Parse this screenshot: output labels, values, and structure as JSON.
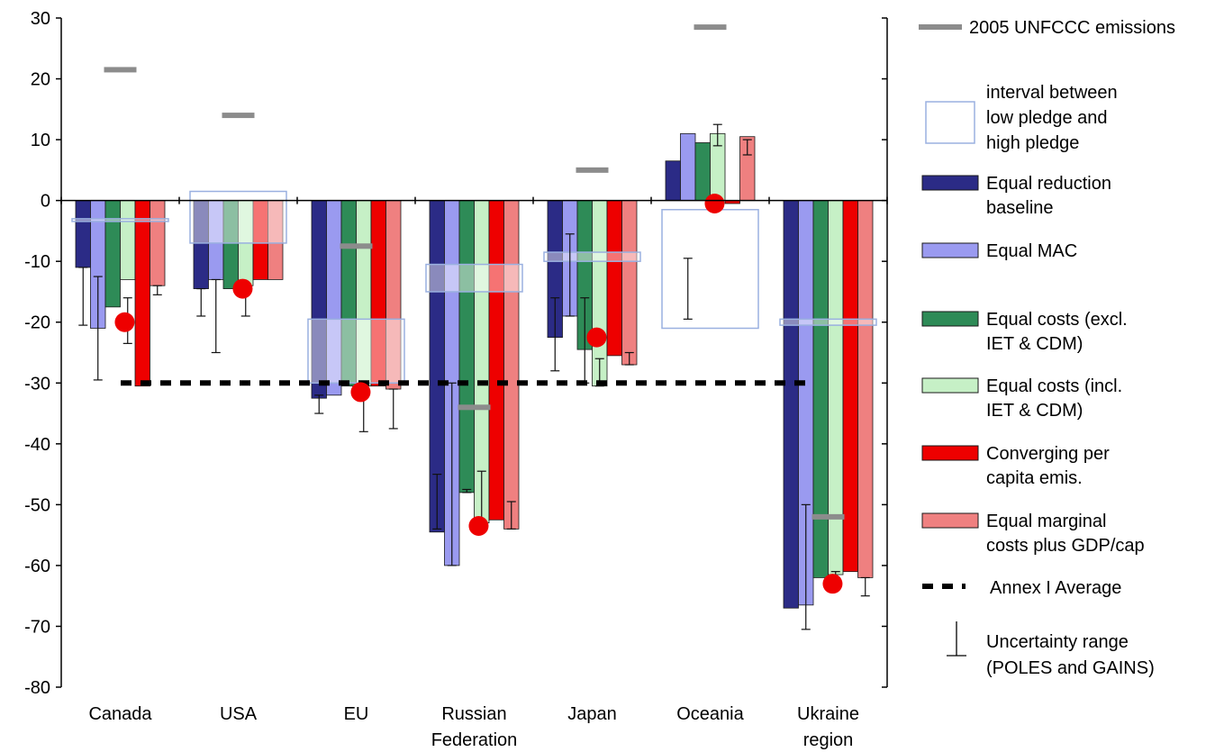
{
  "chart_data": {
    "type": "bar",
    "ylim": [
      -80,
      30
    ],
    "yticks": [
      "30",
      "20",
      "10",
      "0",
      "-10",
      "-20",
      "-30",
      "-40",
      "-50",
      "-60",
      "-70",
      "-80"
    ],
    "categories": [
      [
        "Canada"
      ],
      [
        "USA"
      ],
      [
        "EU"
      ],
      [
        "Russian",
        "Federation"
      ],
      [
        "Japan"
      ],
      [
        "Oceania"
      ],
      [
        "Ukraine",
        "region"
      ]
    ],
    "colors": {
      "equal_reduction_baseline": "#2b2b86",
      "equal_mac": "#9a9af0",
      "equal_costs_excl": "#2e8b57",
      "equal_costs_incl": "#c6f0c6",
      "converging": "#ee0000",
      "equal_marginal_gdp": "#ef8080",
      "unfccc_marker": "#8c8c8c",
      "pledge_box": "#9ab0e0",
      "red_dot": "#ee0000"
    },
    "series": [
      {
        "name": "Equal reduction baseline",
        "key": "equal_reduction_baseline",
        "values": [
          -11,
          -14.5,
          -32.5,
          -54.5,
          -22.5,
          6.5,
          -67
        ]
      },
      {
        "name": "Equal MAC",
        "key": "equal_mac",
        "values": [
          -21,
          -13,
          -32,
          -60,
          -19,
          11,
          -66.5
        ]
      },
      {
        "name": "Equal costs (excl. IET & CDM)",
        "key": "equal_costs_excl",
        "values": [
          -17.5,
          -14.5,
          -30.5,
          -48,
          -24.5,
          9.5,
          -62
        ]
      },
      {
        "name": "Equal costs (incl. IET & CDM)",
        "key": "equal_costs_incl",
        "values": [
          -13,
          -14,
          -30.5,
          -53,
          -30.5,
          11,
          -61.5
        ]
      },
      {
        "name": "Converging per capita emis.",
        "key": "converging",
        "values": [
          -30.5,
          -13,
          -30.5,
          -52.5,
          -25.5,
          -0.5,
          -61
        ]
      },
      {
        "name": "Equal marginal costs plus GDP/cap",
        "key": "equal_marginal_gdp",
        "values": [
          -14,
          -13,
          -31,
          -54,
          -27,
          10.5,
          -62
        ]
      }
    ],
    "unfccc_2005": [
      21.5,
      14,
      -7.5,
      -34,
      5,
      28.5,
      -52
    ],
    "pledge_interval": [
      [
        -1.5,
        -3
      ],
      [
        -7,
        1.5
      ],
      [
        -30,
        -19.5
      ],
      [
        -15,
        -10.5
      ],
      [
        -10,
        -8.5
      ],
      [
        -21,
        -1.5
      ],
      [
        -20.5,
        -19.5
      ]
    ],
    "pledge_markers": [
      -20,
      -14.5,
      -31.5,
      -53.5,
      -22.5,
      -0.5,
      -63
    ],
    "annex1_average": -30,
    "uncertainty": [
      [
        -20.5,
        -11
      ],
      [
        -29.5,
        -12.5
      ],
      null,
      [
        -23.5,
        -16
      ],
      null,
      [
        -15.5,
        -14
      ],
      [
        -19,
        -14.5
      ],
      [
        -25,
        -13
      ],
      null,
      [
        -19,
        -14.5
      ],
      null,
      null,
      [
        -35,
        -32
      ],
      null,
      null,
      [
        -38,
        -31
      ],
      null,
      [
        -37.5,
        -31
      ],
      [
        -54,
        -45
      ],
      [
        -60,
        -30
      ],
      [
        -48,
        -47.5
      ],
      [
        -53,
        -44.5
      ],
      null,
      [
        -54,
        -49.5
      ],
      [
        -28,
        -16
      ],
      [
        -19,
        -5.5
      ],
      [
        -30,
        -16
      ],
      [
        -30.5,
        -26
      ],
      null,
      [
        -27,
        -25
      ],
      null,
      [
        -19.5,
        -9.5
      ],
      null,
      [
        12.5,
        9
      ],
      null,
      [
        10,
        7.5
      ],
      null,
      [
        -70.5,
        -50
      ],
      null,
      [
        -62,
        -61
      ],
      null,
      [
        -65,
        -62
      ]
    ],
    "legend": {
      "unfccc": "2005 UNFCCC emissions",
      "interval": [
        "interval between",
        "low pledge and",
        "high pledge"
      ],
      "s0": [
        "Equal reduction",
        "baseline"
      ],
      "s1": [
        "Equal MAC"
      ],
      "s2": [
        "Equal costs (excl.",
        "IET & CDM)"
      ],
      "s3": [
        "Equal costs (incl.",
        "IET & CDM)"
      ],
      "s4": [
        "Converging per",
        "capita emis."
      ],
      "s5": [
        "Equal marginal",
        "costs plus GDP/cap"
      ],
      "annex": "Annex I Average",
      "uncertainty": [
        "Uncertainty range",
        "(POLES and GAINS)"
      ]
    }
  }
}
